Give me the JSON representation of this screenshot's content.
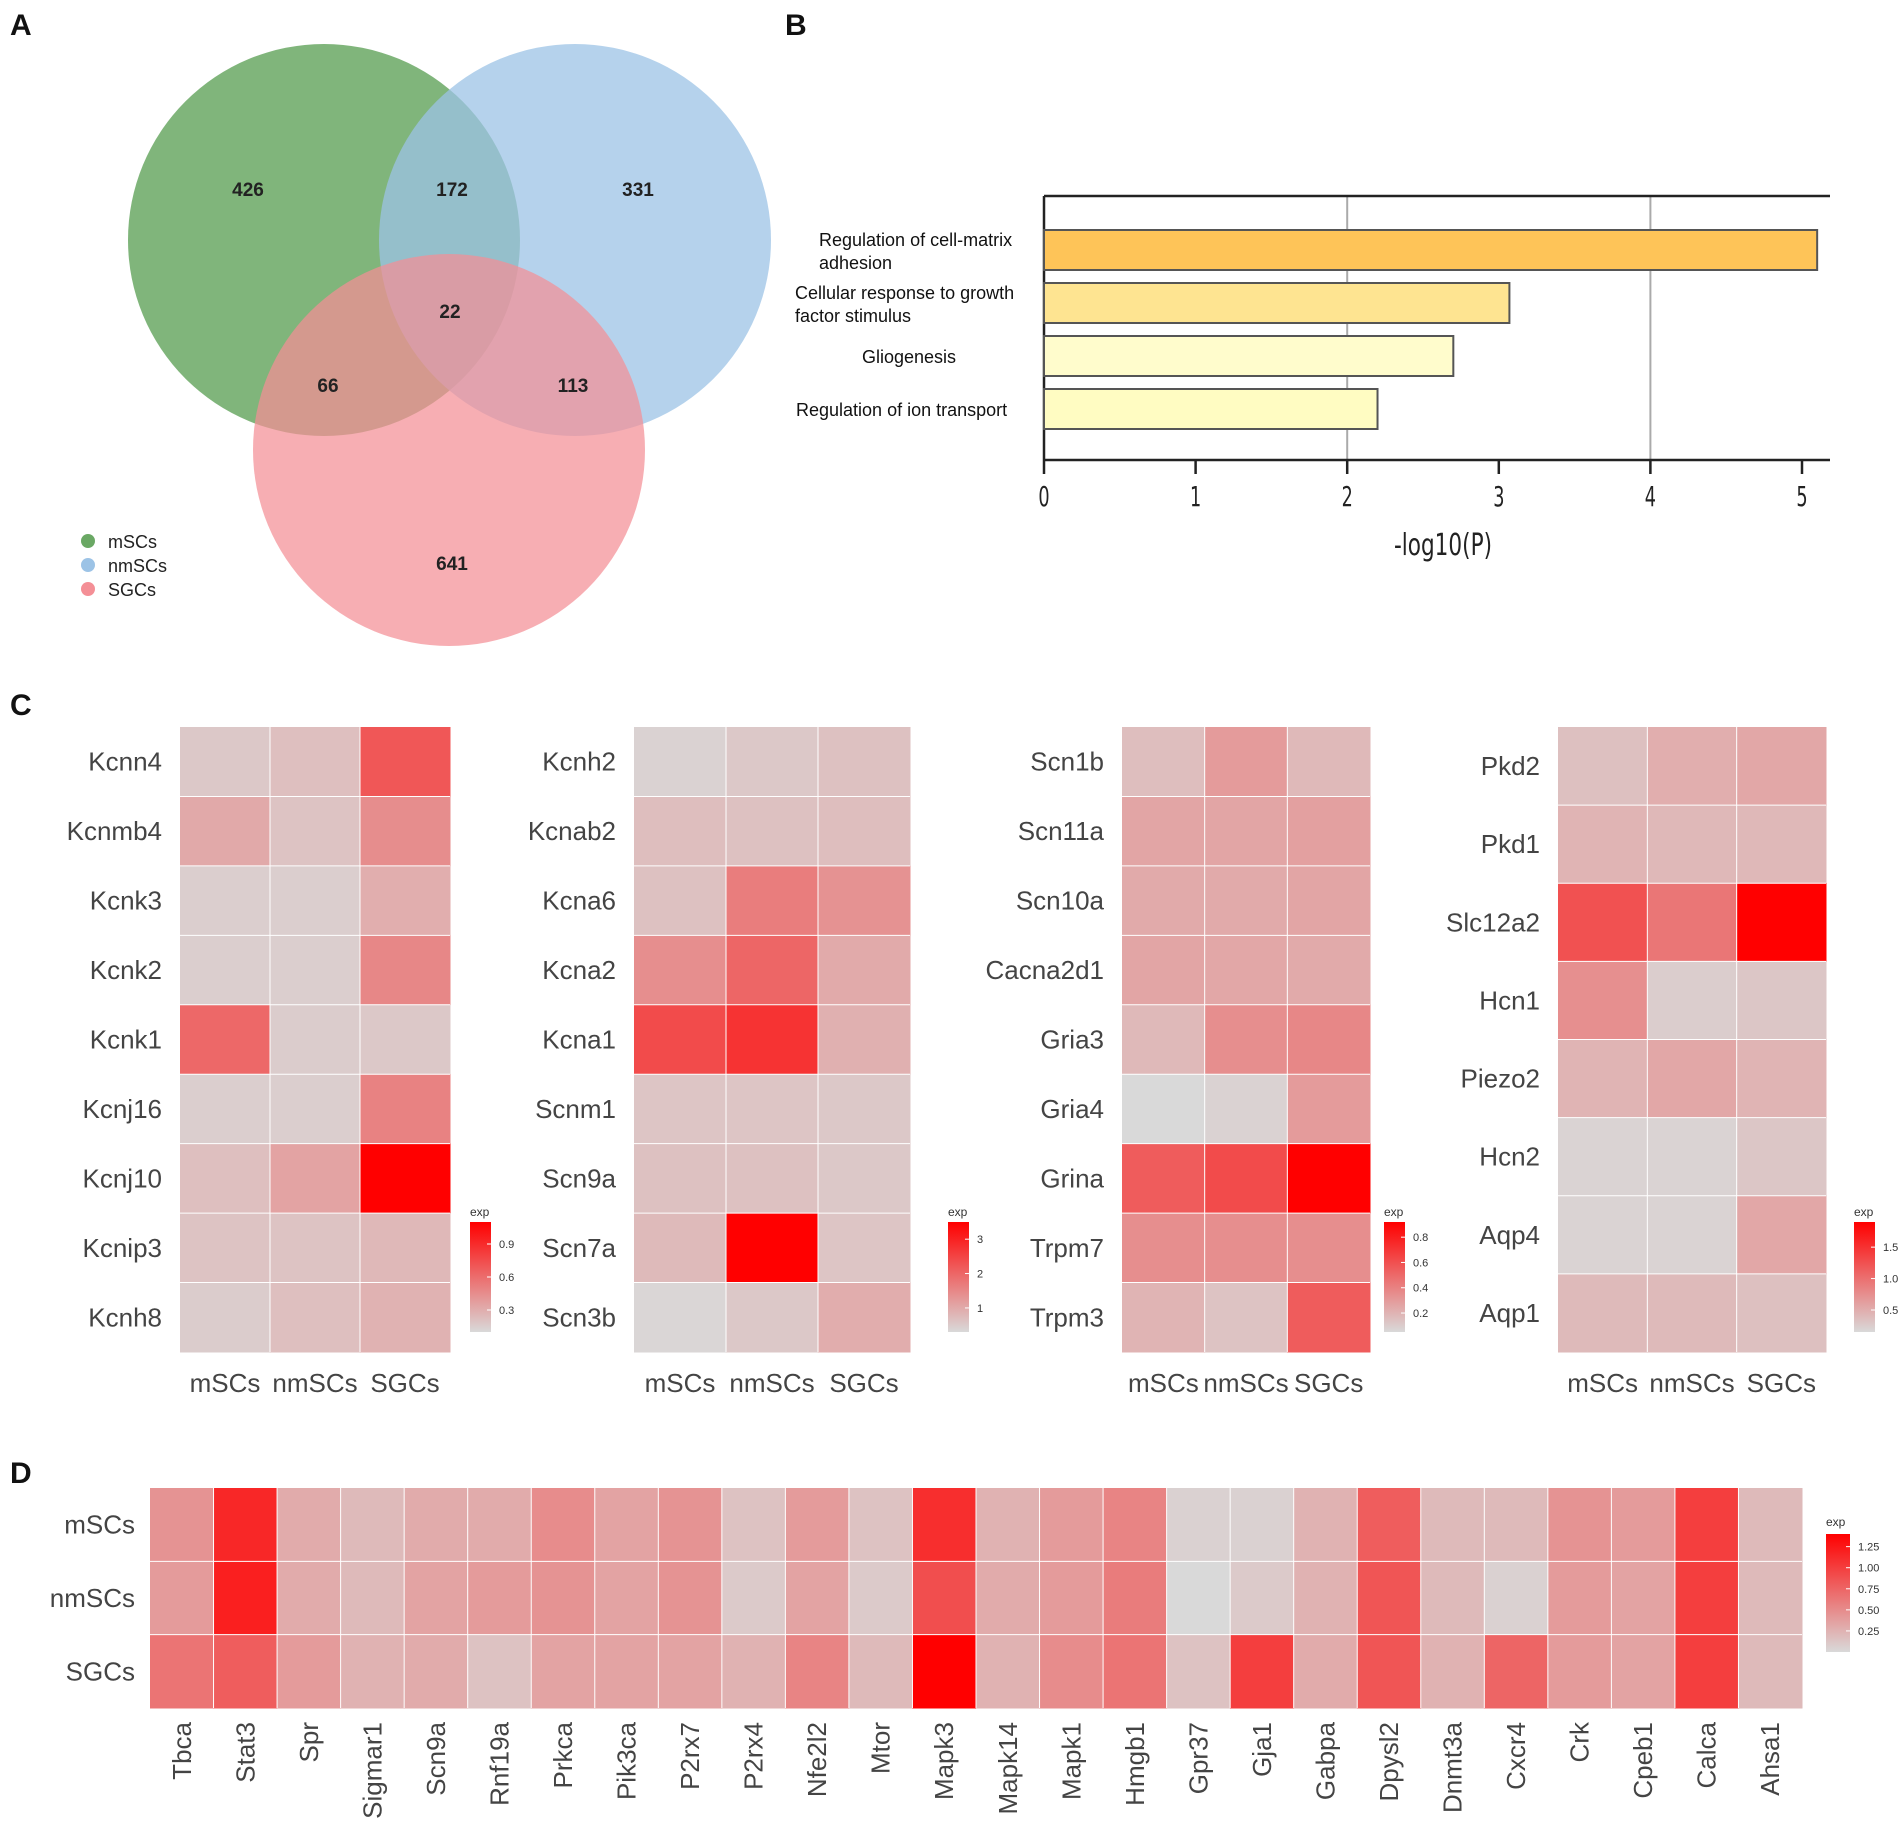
{
  "panels": {
    "a": "A",
    "b": "B",
    "c": "C",
    "d": "D"
  },
  "chart_data": [
    {
      "type": "venn",
      "panel": "A",
      "sets": [
        {
          "name": "mSCs",
          "color": "#6aa864"
        },
        {
          "name": "nmSCs",
          "color": "#9cc3e6"
        },
        {
          "name": "SGCs",
          "color": "#f48f96"
        }
      ],
      "regions": {
        "mSCs_only": "426",
        "mSCs_nmSCs": "172",
        "nmSCs_only": "331",
        "all": "22",
        "mSCs_SGCs": "66",
        "nmSCs_SGCs": "113",
        "SGCs_only": "641"
      },
      "legend": [
        "mSCs",
        "nmSCs",
        "SGCs"
      ]
    },
    {
      "type": "bar",
      "panel": "B",
      "orientation": "horizontal",
      "categories": [
        [
          "Regulation of cell-matrix",
          "adhesion"
        ],
        [
          "Cellular response to growth",
          "factor stimulus"
        ],
        [
          "Gliogenesis"
        ],
        [
          "Regulation of ion transport"
        ]
      ],
      "values": [
        5.1,
        3.07,
        2.7,
        2.2
      ],
      "colors": [
        "#fec458",
        "#fee491",
        "#fffccc",
        "#fffcc2"
      ],
      "xlabel": "-log10(P)",
      "xlim": [
        0,
        5.2
      ],
      "xticks": [
        "0",
        "1",
        "2",
        "3",
        "4",
        "5"
      ],
      "grid": "vertical at 2 and 4"
    },
    {
      "type": "heatmap",
      "panel": "C1",
      "rows": [
        "Kcnn4",
        "Kcnmb4",
        "Kcnk3",
        "Kcnk2",
        "Kcnk1",
        "Kcnj16",
        "Kcnj10",
        "Kcnip3",
        "Kcnh8"
      ],
      "columns": [
        "mSCs",
        "nmSCs",
        "SGCs"
      ],
      "values": [
        [
          0.18,
          0.22,
          0.7
        ],
        [
          0.32,
          0.2,
          0.45
        ],
        [
          0.15,
          0.15,
          0.3
        ],
        [
          0.15,
          0.15,
          0.48
        ],
        [
          0.62,
          0.16,
          0.18
        ],
        [
          0.15,
          0.15,
          0.5
        ],
        [
          0.22,
          0.35,
          1.1
        ],
        [
          0.2,
          0.2,
          0.25
        ],
        [
          0.16,
          0.22,
          0.28
        ]
      ],
      "legend_title": "exp",
      "legend_ticks": [
        "0.9",
        "0.6",
        "0.3"
      ],
      "range": [
        0.1,
        1.1
      ]
    },
    {
      "type": "heatmap",
      "panel": "C2",
      "rows": [
        "Kcnh2",
        "Kcnab2",
        "Kcna6",
        "Kcna2",
        "Kcna1",
        "Scnm1",
        "Scn9a",
        "Scn7a",
        "Scn3b"
      ],
      "columns": [
        "mSCs",
        "nmSCs",
        "SGCs"
      ],
      "values": [
        [
          0.4,
          0.55,
          0.65
        ],
        [
          0.7,
          0.65,
          0.7
        ],
        [
          0.65,
          1.65,
          1.35
        ],
        [
          1.4,
          2.0,
          1.0
        ],
        [
          2.4,
          2.75,
          0.9
        ],
        [
          0.6,
          0.6,
          0.55
        ],
        [
          0.65,
          0.65,
          0.55
        ],
        [
          0.75,
          3.5,
          0.6
        ],
        [
          0.35,
          0.55,
          0.95
        ]
      ],
      "legend_title": "exp",
      "legend_ticks": [
        "3",
        "2",
        "1"
      ],
      "range": [
        0.3,
        3.5
      ]
    },
    {
      "type": "heatmap",
      "panel": "C3",
      "rows": [
        "Scn1b",
        "Scn11a",
        "Scn10a",
        "Cacna2d1",
        "Gria3",
        "Gria4",
        "Grina",
        "Trpm7",
        "Trpm3"
      ],
      "columns": [
        "mSCs",
        "nmSCs",
        "SGCs"
      ],
      "values": [
        [
          0.16,
          0.3,
          0.18
        ],
        [
          0.26,
          0.26,
          0.28
        ],
        [
          0.24,
          0.24,
          0.26
        ],
        [
          0.26,
          0.25,
          0.24
        ],
        [
          0.18,
          0.35,
          0.38
        ],
        [
          0.05,
          0.08,
          0.3
        ],
        [
          0.55,
          0.62,
          0.92
        ],
        [
          0.35,
          0.35,
          0.35
        ],
        [
          0.2,
          0.14,
          0.55
        ]
      ],
      "legend_title": "exp",
      "legend_ticks": [
        "0.8",
        "0.6",
        "0.4",
        "0.2"
      ],
      "range": [
        0.05,
        0.92
      ]
    },
    {
      "type": "heatmap",
      "panel": "C4",
      "rows": [
        "Pkd2",
        "Pkd1",
        "Slc12a2",
        "Hcn1",
        "Piezo2",
        "Hcn2",
        "Aqp4",
        "Aqp1"
      ],
      "columns": [
        "mSCs",
        "nmSCs",
        "SGCs"
      ],
      "values": [
        [
          0.35,
          0.5,
          0.55
        ],
        [
          0.45,
          0.42,
          0.42
        ],
        [
          1.25,
          0.95,
          1.9
        ],
        [
          0.75,
          0.25,
          0.3
        ],
        [
          0.45,
          0.55,
          0.45
        ],
        [
          0.2,
          0.2,
          0.3
        ],
        [
          0.2,
          0.2,
          0.55
        ],
        [
          0.4,
          0.4,
          0.35
        ]
      ],
      "legend_title": "exp",
      "legend_ticks": [
        "1.5",
        "1.0",
        "0.5"
      ],
      "range": [
        0.15,
        1.9
      ]
    },
    {
      "type": "heatmap",
      "panel": "D",
      "rows": [
        "mSCs",
        "nmSCs",
        "SGCs"
      ],
      "columns": [
        "Tbca",
        "Stat3",
        "Spr",
        "Sigmar1",
        "Scn9a",
        "Rnf19a",
        "Prkca",
        "Pik3ca",
        "P2rx7",
        "P2rx4",
        "Nfe2l2",
        "Mtor",
        "Mapk3",
        "Mapk14",
        "Mapk1",
        "Hmgb1",
        "Gpr37",
        "Gja1",
        "Gabpa",
        "Dpysl2",
        "Dnmt3a",
        "Cxcr4",
        "Crk",
        "Cpeb1",
        "Calca",
        "Ahsa1"
      ],
      "values": [
        [
          0.45,
          1.15,
          0.3,
          0.2,
          0.3,
          0.3,
          0.5,
          0.35,
          0.45,
          0.15,
          0.4,
          0.15,
          1.1,
          0.25,
          0.4,
          0.55,
          0.05,
          0.05,
          0.25,
          0.8,
          0.2,
          0.2,
          0.45,
          0.4,
          1.0,
          0.2
        ],
        [
          0.4,
          1.2,
          0.3,
          0.2,
          0.35,
          0.4,
          0.45,
          0.35,
          0.45,
          0.1,
          0.35,
          0.1,
          0.9,
          0.3,
          0.4,
          0.6,
          0.0,
          0.1,
          0.25,
          0.85,
          0.2,
          0.05,
          0.4,
          0.35,
          1.0,
          0.2
        ],
        [
          0.65,
          0.8,
          0.4,
          0.25,
          0.3,
          0.15,
          0.35,
          0.35,
          0.35,
          0.25,
          0.55,
          0.2,
          1.4,
          0.25,
          0.5,
          0.65,
          0.15,
          1.0,
          0.3,
          0.85,
          0.25,
          0.75,
          0.4,
          0.35,
          1.0,
          0.2
        ]
      ],
      "legend_title": "exp",
      "legend_ticks": [
        "1.25",
        "1.00",
        "0.75",
        "0.50",
        "0.25"
      ],
      "range": [
        0.0,
        1.4
      ]
    }
  ],
  "colors": {
    "low": "#d9d9d9",
    "high": "#ff0000"
  }
}
